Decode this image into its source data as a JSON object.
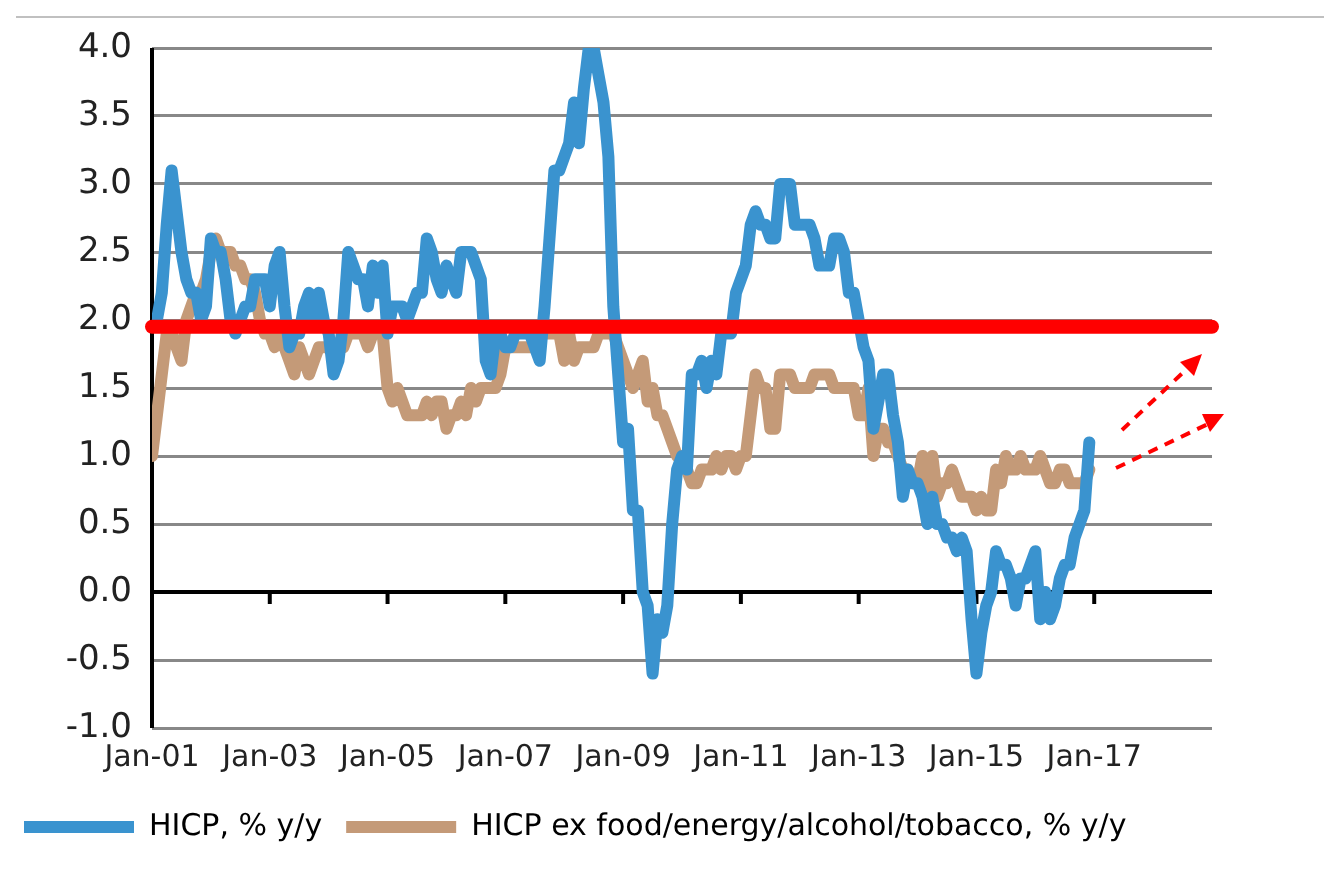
{
  "chart_data": {
    "type": "line",
    "x": [
      "2001-01",
      "2001-02",
      "2001-03",
      "2001-04",
      "2001-05",
      "2001-06",
      "2001-07",
      "2001-08",
      "2001-09",
      "2001-10",
      "2001-11",
      "2001-12",
      "2002-01",
      "2002-02",
      "2002-03",
      "2002-04",
      "2002-05",
      "2002-06",
      "2002-07",
      "2002-08",
      "2002-09",
      "2002-10",
      "2002-11",
      "2002-12",
      "2003-01",
      "2003-02",
      "2003-03",
      "2003-04",
      "2003-05",
      "2003-06",
      "2003-07",
      "2003-08",
      "2003-09",
      "2003-10",
      "2003-11",
      "2003-12",
      "2004-01",
      "2004-02",
      "2004-03",
      "2004-04",
      "2004-05",
      "2004-06",
      "2004-07",
      "2004-08",
      "2004-09",
      "2004-10",
      "2004-11",
      "2004-12",
      "2005-01",
      "2005-02",
      "2005-03",
      "2005-04",
      "2005-05",
      "2005-06",
      "2005-07",
      "2005-08",
      "2005-09",
      "2005-10",
      "2005-11",
      "2005-12",
      "2006-01",
      "2006-02",
      "2006-03",
      "2006-04",
      "2006-05",
      "2006-06",
      "2006-07",
      "2006-08",
      "2006-09",
      "2006-10",
      "2006-11",
      "2006-12",
      "2007-01",
      "2007-02",
      "2007-03",
      "2007-04",
      "2007-05",
      "2007-06",
      "2007-07",
      "2007-08",
      "2007-09",
      "2007-10",
      "2007-11",
      "2007-12",
      "2008-01",
      "2008-02",
      "2008-03",
      "2008-04",
      "2008-05",
      "2008-06",
      "2008-07",
      "2008-08",
      "2008-09",
      "2008-10",
      "2008-11",
      "2008-12",
      "2009-01",
      "2009-02",
      "2009-03",
      "2009-04",
      "2009-05",
      "2009-06",
      "2009-07",
      "2009-08",
      "2009-09",
      "2009-10",
      "2009-11",
      "2009-12",
      "2010-01",
      "2010-02",
      "2010-03",
      "2010-04",
      "2010-05",
      "2010-06",
      "2010-07",
      "2010-08",
      "2010-09",
      "2010-10",
      "2010-11",
      "2010-12",
      "2011-01",
      "2011-02",
      "2011-03",
      "2011-04",
      "2011-05",
      "2011-06",
      "2011-07",
      "2011-08",
      "2011-09",
      "2011-10",
      "2011-11",
      "2011-12",
      "2012-01",
      "2012-02",
      "2012-03",
      "2012-04",
      "2012-05",
      "2012-06",
      "2012-07",
      "2012-08",
      "2012-09",
      "2012-10",
      "2012-11",
      "2012-12",
      "2013-01",
      "2013-02",
      "2013-03",
      "2013-04",
      "2013-05",
      "2013-06",
      "2013-07",
      "2013-08",
      "2013-09",
      "2013-10",
      "2013-11",
      "2013-12",
      "2014-01",
      "2014-02",
      "2014-03",
      "2014-04",
      "2014-05",
      "2014-06",
      "2014-07",
      "2014-08",
      "2014-09",
      "2014-10",
      "2014-11",
      "2014-12",
      "2015-01",
      "2015-02",
      "2015-03",
      "2015-04",
      "2015-05",
      "2015-06",
      "2015-07",
      "2015-08",
      "2015-09",
      "2015-10",
      "2015-11",
      "2015-12",
      "2016-01",
      "2016-02",
      "2016-03",
      "2016-04",
      "2016-05",
      "2016-06",
      "2016-07",
      "2016-08",
      "2016-09",
      "2016-10",
      "2016-11",
      "2016-12"
    ],
    "series": [
      {
        "name": "HICP, % y/y",
        "color": "#3a93cf",
        "values": [
          2.0,
          2.0,
          2.2,
          2.7,
          3.1,
          2.8,
          2.5,
          2.3,
          2.2,
          2.2,
          2.0,
          2.1,
          2.6,
          2.5,
          2.5,
          2.3,
          2.0,
          1.9,
          2.0,
          2.1,
          2.1,
          2.3,
          2.3,
          2.3,
          2.1,
          2.4,
          2.5,
          2.1,
          1.8,
          1.9,
          1.9,
          2.1,
          2.2,
          2.0,
          2.2,
          2.0,
          1.9,
          1.6,
          1.7,
          2.0,
          2.5,
          2.4,
          2.3,
          2.3,
          2.1,
          2.4,
          2.2,
          2.4,
          1.9,
          2.1,
          2.1,
          2.1,
          2.0,
          2.1,
          2.2,
          2.2,
          2.6,
          2.5,
          2.3,
          2.2,
          2.4,
          2.3,
          2.2,
          2.5,
          2.5,
          2.5,
          2.4,
          2.3,
          1.7,
          1.6,
          1.9,
          1.9,
          1.8,
          1.8,
          1.9,
          1.9,
          1.9,
          1.9,
          1.8,
          1.7,
          2.1,
          2.6,
          3.1,
          3.1,
          3.2,
          3.3,
          3.6,
          3.3,
          3.7,
          4.0,
          4.0,
          3.8,
          3.6,
          3.2,
          2.1,
          1.6,
          1.1,
          1.2,
          0.6,
          0.6,
          0.0,
          -0.1,
          -0.6,
          -0.2,
          -0.3,
          -0.1,
          0.5,
          0.9,
          1.0,
          0.9,
          1.6,
          1.6,
          1.7,
          1.5,
          1.7,
          1.6,
          1.9,
          1.9,
          1.9,
          2.2,
          2.3,
          2.4,
          2.7,
          2.8,
          2.7,
          2.7,
          2.6,
          2.6,
          3.0,
          3.0,
          3.0,
          2.7,
          2.7,
          2.7,
          2.7,
          2.6,
          2.4,
          2.4,
          2.4,
          2.6,
          2.6,
          2.5,
          2.2,
          2.2,
          2.0,
          1.8,
          1.7,
          1.2,
          1.4,
          1.6,
          1.6,
          1.3,
          1.1,
          0.7,
          0.9,
          0.8,
          0.8,
          0.7,
          0.5,
          0.7,
          0.5,
          0.5,
          0.4,
          0.4,
          0.3,
          0.4,
          0.3,
          -0.2,
          -0.6,
          -0.3,
          -0.1,
          0.0,
          0.3,
          0.2,
          0.2,
          0.1,
          -0.1,
          0.1,
          0.1,
          0.2,
          0.3,
          -0.2,
          0.0,
          -0.2,
          -0.1,
          0.1,
          0.2,
          0.2,
          0.4,
          0.5,
          0.6,
          1.1
        ]
      },
      {
        "name": "HICP ex food/energy/alcohol/tobacco, % y/y",
        "color": "#c49a78",
        "values": [
          1.0,
          1.3,
          1.6,
          1.9,
          1.9,
          1.8,
          1.7,
          2.0,
          2.1,
          2.2,
          2.2,
          2.3,
          2.5,
          2.6,
          2.5,
          2.5,
          2.5,
          2.4,
          2.4,
          2.3,
          2.3,
          2.2,
          2.0,
          1.9,
          1.9,
          1.8,
          1.9,
          1.8,
          1.7,
          1.6,
          1.8,
          1.7,
          1.6,
          1.7,
          1.8,
          1.8,
          1.8,
          1.8,
          1.8,
          1.8,
          1.9,
          1.9,
          1.9,
          1.9,
          1.8,
          1.9,
          1.9,
          1.9,
          1.5,
          1.4,
          1.5,
          1.4,
          1.3,
          1.3,
          1.3,
          1.3,
          1.4,
          1.3,
          1.4,
          1.4,
          1.2,
          1.3,
          1.3,
          1.4,
          1.3,
          1.5,
          1.4,
          1.5,
          1.5,
          1.5,
          1.5,
          1.6,
          1.8,
          1.8,
          1.8,
          1.8,
          1.8,
          1.8,
          1.8,
          1.9,
          1.9,
          1.9,
          1.9,
          1.9,
          1.7,
          1.9,
          1.7,
          1.8,
          1.8,
          1.8,
          1.8,
          1.9,
          1.9,
          1.9,
          1.9,
          1.8,
          1.7,
          1.6,
          1.5,
          1.6,
          1.7,
          1.4,
          1.5,
          1.3,
          1.3,
          1.2,
          1.1,
          1.0,
          1.0,
          0.9,
          0.8,
          0.8,
          0.9,
          0.9,
          0.9,
          1.0,
          0.9,
          1.0,
          1.0,
          0.9,
          1.0,
          1.0,
          1.3,
          1.6,
          1.5,
          1.5,
          1.2,
          1.2,
          1.6,
          1.6,
          1.6,
          1.5,
          1.5,
          1.5,
          1.5,
          1.6,
          1.6,
          1.6,
          1.6,
          1.5,
          1.5,
          1.5,
          1.5,
          1.5,
          1.3,
          1.3,
          1.5,
          1.0,
          1.2,
          1.2,
          1.1,
          1.1,
          1.0,
          0.9,
          0.9,
          0.8,
          0.8,
          1.0,
          0.7,
          1.0,
          0.7,
          0.8,
          0.8,
          0.9,
          0.8,
          0.7,
          0.7,
          0.7,
          0.6,
          0.7,
          0.6,
          0.6,
          0.9,
          0.8,
          1.0,
          0.9,
          0.9,
          1.0,
          0.9,
          0.9,
          0.9,
          1.0,
          0.9,
          0.8,
          0.8,
          0.9,
          0.9,
          0.8,
          0.8,
          0.8,
          0.8,
          0.9
        ]
      }
    ],
    "xlim": [
      "2001-01",
      "2019-01"
    ],
    "xticks": [
      {
        "value": "2001-01",
        "label": "Jan-01"
      },
      {
        "value": "2003-01",
        "label": "Jan-03"
      },
      {
        "value": "2005-01",
        "label": "Jan-05"
      },
      {
        "value": "2007-01",
        "label": "Jan-07"
      },
      {
        "value": "2009-01",
        "label": "Jan-09"
      },
      {
        "value": "2011-01",
        "label": "Jan-11"
      },
      {
        "value": "2013-01",
        "label": "Jan-13"
      },
      {
        "value": "2015-01",
        "label": "Jan-15"
      },
      {
        "value": "2017-01",
        "label": "Jan-17"
      }
    ],
    "ylim": [
      -1,
      4
    ],
    "yticks": [
      {
        "value": -1,
        "label": "-1.0"
      },
      {
        "value": -0.5,
        "label": "-0.5"
      },
      {
        "value": 0,
        "label": "0.0"
      },
      {
        "value": 0.5,
        "label": "0.5"
      },
      {
        "value": 1,
        "label": "1.0"
      },
      {
        "value": 1.5,
        "label": "1.5"
      },
      {
        "value": 2,
        "label": "2.0"
      },
      {
        "value": 2.5,
        "label": "2.5"
      },
      {
        "value": 3,
        "label": "3.0"
      },
      {
        "value": 3.5,
        "label": "3.5"
      },
      {
        "value": 4,
        "label": "4.0"
      }
    ],
    "ref_lines": [
      {
        "axis": "y",
        "value": 1.95,
        "color": "#ff0000"
      }
    ],
    "grid": "y",
    "legend": "bottom",
    "marker": "none",
    "line_style": "solid"
  }
}
